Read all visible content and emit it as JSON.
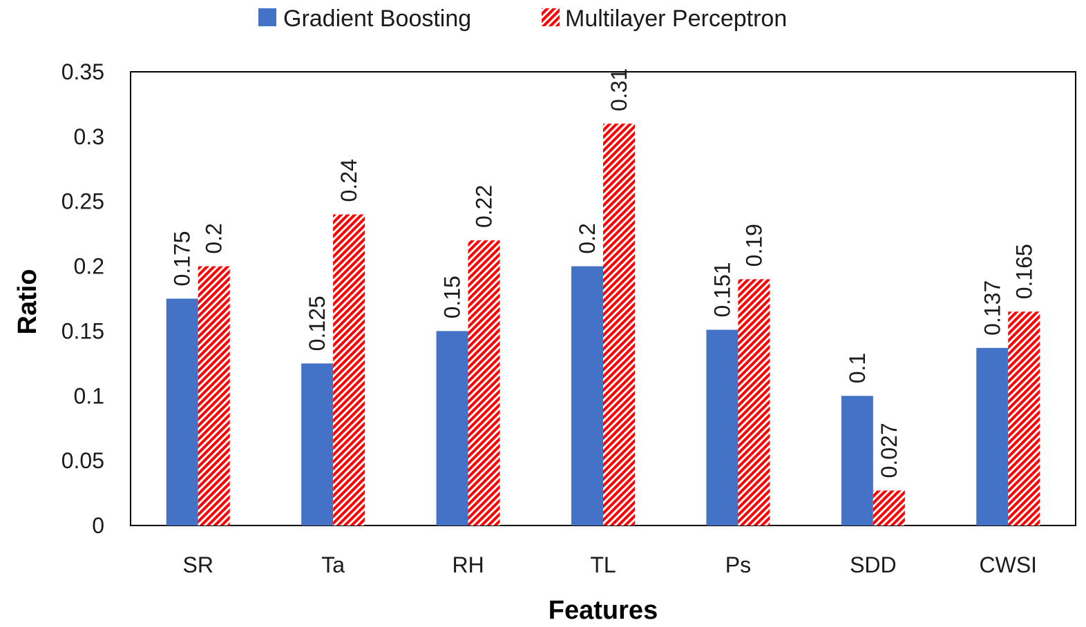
{
  "chart_data": {
    "type": "bar",
    "title": "",
    "xlabel": "Features",
    "ylabel": "Ratio",
    "categories": [
      "SR",
      "Ta",
      "RH",
      "TL",
      "Ps",
      "SDD",
      "CWSI"
    ],
    "series": [
      {
        "name": "Gradient Boosting",
        "color": "#4472C4",
        "pattern": "solid",
        "values": [
          0.175,
          0.125,
          0.15,
          0.2,
          0.151,
          0.1,
          0.137
        ],
        "labels": [
          "0.175",
          "0.125",
          "0.15",
          "0.2",
          "0.151",
          "0.1",
          "0.137"
        ]
      },
      {
        "name": "Multilayer Perceptron",
        "color": "#FF0000",
        "pattern": "diagonal-hatch",
        "values": [
          0.2,
          0.24,
          0.22,
          0.31,
          0.19,
          0.027,
          0.165
        ],
        "labels": [
          "0.2",
          "0.24",
          "0.22",
          "0.31",
          "0.19",
          "0.027",
          "0.165"
        ]
      }
    ],
    "ylim": [
      0,
      0.35
    ],
    "yticks": [
      0,
      0.05,
      0.1,
      0.15,
      0.2,
      0.25,
      0.3,
      0.35
    ],
    "ytick_labels": [
      "0",
      "0.05",
      "0.1",
      "0.15",
      "0.2",
      "0.25",
      "0.3",
      "0.35"
    ],
    "legend_position": "top-center",
    "grid": false
  }
}
